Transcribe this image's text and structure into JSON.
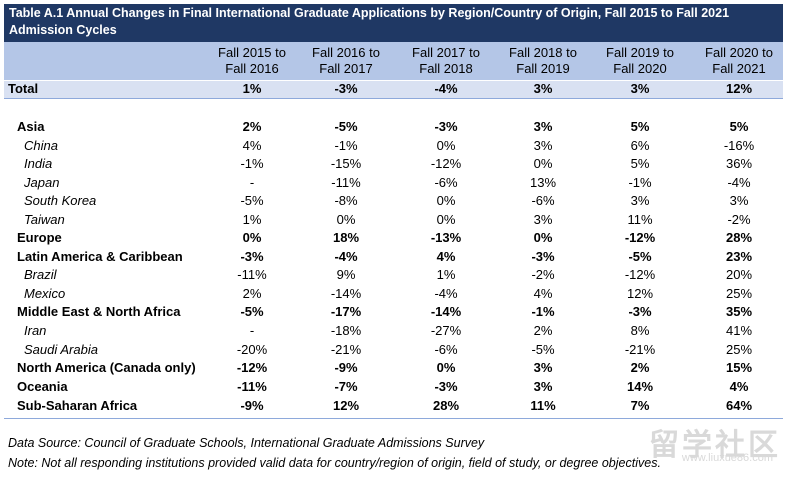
{
  "title": "Table A.1 Annual Changes in Final International Graduate Applications by Region/Country of Origin, Fall 2015 to Fall 2021 Admission Cycles",
  "columns": [
    [
      "Fall 2015 to",
      "Fall 2016"
    ],
    [
      "Fall 2016 to",
      "Fall 2017"
    ],
    [
      "Fall 2017 to",
      "Fall 2018"
    ],
    [
      "Fall 2018 to",
      "Fall 2019"
    ],
    [
      "Fall 2019 to",
      "Fall 2020"
    ],
    [
      "Fall 2020 to",
      "Fall 2021"
    ]
  ],
  "total": {
    "label": "Total",
    "values": [
      "1%",
      "-3%",
      "-4%",
      "3%",
      "3%",
      "12%"
    ]
  },
  "rows": [
    {
      "label": "Asia",
      "kind": "region",
      "values": [
        "2%",
        "-5%",
        "-3%",
        "3%",
        "5%",
        "5%"
      ]
    },
    {
      "label": "China",
      "kind": "country",
      "values": [
        "4%",
        "-1%",
        "0%",
        "3%",
        "6%",
        "-16%"
      ]
    },
    {
      "label": "India",
      "kind": "country",
      "values": [
        "-1%",
        "-15%",
        "-12%",
        "0%",
        "5%",
        "36%"
      ]
    },
    {
      "label": "Japan",
      "kind": "country",
      "values": [
        "-",
        "-11%",
        "-6%",
        "13%",
        "-1%",
        "-4%"
      ]
    },
    {
      "label": "South Korea",
      "kind": "country",
      "values": [
        "-5%",
        "-8%",
        "0%",
        "-6%",
        "3%",
        "3%"
      ]
    },
    {
      "label": "Taiwan",
      "kind": "country",
      "values": [
        "1%",
        "0%",
        "0%",
        "3%",
        "11%",
        "-2%"
      ]
    },
    {
      "label": "Europe",
      "kind": "region",
      "values": [
        "0%",
        "18%",
        "-13%",
        "0%",
        "-12%",
        "28%"
      ]
    },
    {
      "label": "Latin America & Caribbean",
      "kind": "region",
      "values": [
        "-3%",
        "-4%",
        "4%",
        "-3%",
        "-5%",
        "23%"
      ]
    },
    {
      "label": "Brazil",
      "kind": "country",
      "values": [
        "-11%",
        "9%",
        "1%",
        "-2%",
        "-12%",
        "20%"
      ]
    },
    {
      "label": "Mexico",
      "kind": "country",
      "values": [
        "2%",
        "-14%",
        "-4%",
        "4%",
        "12%",
        "25%"
      ]
    },
    {
      "label": "Middle East & North Africa",
      "kind": "region",
      "values": [
        "-5%",
        "-17%",
        "-14%",
        "-1%",
        "-3%",
        "35%"
      ]
    },
    {
      "label": "Iran",
      "kind": "country",
      "values": [
        "-",
        "-18%",
        "-27%",
        "2%",
        "8%",
        "41%"
      ]
    },
    {
      "label": "Saudi Arabia",
      "kind": "country",
      "values": [
        "-20%",
        "-21%",
        "-6%",
        "-5%",
        "-21%",
        "25%"
      ]
    },
    {
      "label": "North America (Canada only)",
      "kind": "region",
      "values": [
        "-12%",
        "-9%",
        "0%",
        "3%",
        "2%",
        "15%"
      ]
    },
    {
      "label": "Oceania",
      "kind": "region",
      "values": [
        "-11%",
        "-7%",
        "-3%",
        "3%",
        "14%",
        "4%"
      ]
    },
    {
      "label": "Sub-Saharan Africa",
      "kind": "region",
      "values": [
        "-9%",
        "12%",
        "28%",
        "11%",
        "7%",
        "64%"
      ]
    }
  ],
  "notes": {
    "source": "Data Source: Council of Graduate Schools, International Graduate Admissions Survey",
    "note": "Note: Not all responding institutions provided valid data for country/region of origin, field of study, or degree objectives."
  },
  "watermark": {
    "text": "留学社区",
    "url": "www.liuxue86.com"
  }
}
